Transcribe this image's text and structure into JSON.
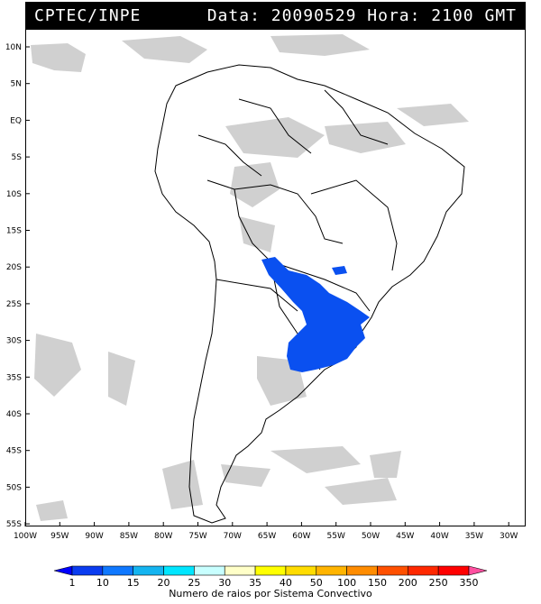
{
  "header": {
    "source": "CPTEC/INPE",
    "datetime": "Data: 20090529 Hora: 2100 GMT"
  },
  "axes": {
    "lat_labels": [
      "10N",
      "5N",
      "EQ",
      "5S",
      "10S",
      "15S",
      "20S",
      "25S",
      "30S",
      "35S",
      "40S",
      "45S",
      "50S",
      "55S"
    ],
    "lon_labels": [
      "100W",
      "95W",
      "90W",
      "85W",
      "80W",
      "75W",
      "70W",
      "65W",
      "60W",
      "55W",
      "50W",
      "45W",
      "40W",
      "35W",
      "30W"
    ]
  },
  "legend": {
    "title": "Numero de raios por Sistema Convectivo",
    "values": [
      "1",
      "10",
      "15",
      "20",
      "25",
      "30",
      "35",
      "40",
      "50",
      "100",
      "150",
      "200",
      "250",
      "350"
    ],
    "colors": [
      "#0000ff",
      "#0a3cf0",
      "#0f78ff",
      "#14b4f0",
      "#00e6ff",
      "#c8ffff",
      "#ffffc8",
      "#ffff00",
      "#ffdc00",
      "#ffb400",
      "#ff8c00",
      "#ff5000",
      "#ff2800",
      "#ff0000",
      "#ff50a0"
    ]
  },
  "colors": {
    "convective_system": "#0a50f0",
    "cloud_cover": "#c8c8c8",
    "borders": "#000000"
  }
}
